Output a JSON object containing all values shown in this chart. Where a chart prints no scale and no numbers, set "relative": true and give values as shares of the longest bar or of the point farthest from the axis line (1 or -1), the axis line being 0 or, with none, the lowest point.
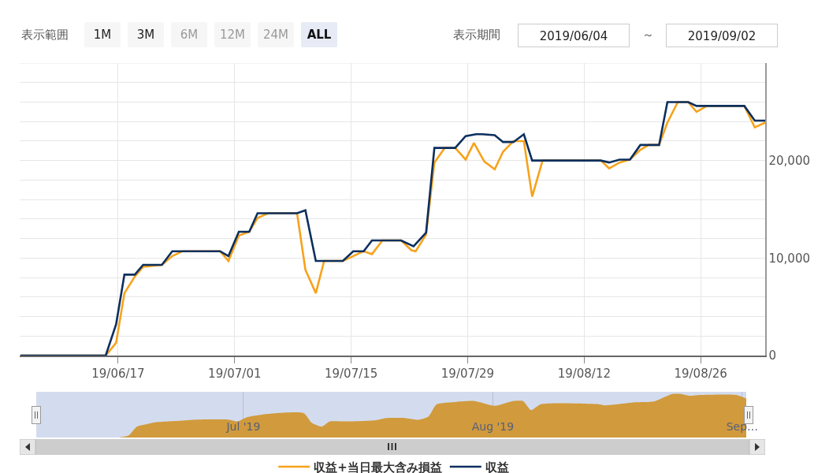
{
  "chart_data": [
    {
      "type": "line",
      "legend": "bottom",
      "grid": true,
      "annotations": [
        "表示範囲",
        "1M",
        "3M",
        "6M",
        "12M",
        "24M",
        "ALL",
        "表示期間",
        "2019/06/04",
        "～",
        "2019/09/02"
      ],
      "xlim": [
        "2019-06-05T04:00",
        "2019-09-02T18:00"
      ],
      "xticks": [
        {
          "value": "2019-06-17",
          "label": "19/06/17"
        },
        {
          "value": "2019-07-01",
          "label": "19/07/01"
        },
        {
          "value": "2019-07-15",
          "label": "19/07/15"
        },
        {
          "value": "2019-07-29",
          "label": "19/07/29"
        },
        {
          "value": "2019-08-12",
          "label": "19/08/12"
        },
        {
          "value": "2019-08-26",
          "label": "19/08/26"
        }
      ],
      "ylim": [
        0,
        30000
      ],
      "yticks": [
        0,
        {
          "value": 2000,
          "label": null
        },
        {
          "value": 4000,
          "label": null
        },
        {
          "value": 6000,
          "label": null
        },
        {
          "value": 8000,
          "label": null
        },
        {
          "value": 10000,
          "label": "10,000"
        },
        {
          "value": 12000,
          "label": null
        },
        {
          "value": 14000,
          "label": null
        },
        {
          "value": 16000,
          "label": null
        },
        {
          "value": 18000,
          "label": null
        },
        {
          "value": 20000,
          "label": "20,000"
        },
        {
          "value": 22000,
          "label": null
        },
        {
          "value": 24000,
          "label": null
        },
        {
          "value": 26000,
          "label": null
        },
        {
          "value": 28000,
          "label": null
        },
        {
          "value": 30000,
          "label": null
        }
      ],
      "series": [
        {
          "name": "収益+当日最大含み損益",
          "color": "#f7a21b",
          "x": [
            "2019-06-05T06:00",
            "2019-06-15T12:00",
            "2019-06-16T18:00",
            "2019-06-17T18:00",
            "2019-06-19",
            "2019-06-20",
            "2019-06-22T06:00",
            "2019-06-23T12:00",
            "2019-06-24T18:00",
            "2019-06-29T06:00",
            "2019-06-30T06:00",
            "2019-07-01T12:00",
            "2019-07-02T18:00",
            "2019-07-03T18:00",
            "2019-07-05",
            "2019-07-08T12:00",
            "2019-07-09T12:00",
            "2019-07-10T18:00",
            "2019-07-11T18:00",
            "2019-07-14",
            "2019-07-15T06:00",
            "2019-07-16T12:00",
            "2019-07-17T12:00",
            "2019-07-18T18:00",
            "2019-07-21",
            "2019-07-22T06:00",
            "2019-07-22T18:00",
            "2019-07-24",
            "2019-07-25",
            "2019-07-26T06:00",
            "2019-07-27T12:00",
            "2019-07-28T18:00",
            "2019-07-29T18:00",
            "2019-07-31",
            "2019-08-01T06:00",
            "2019-08-02T06:00",
            "2019-08-03T12:00",
            "2019-08-04T18:00",
            "2019-08-05T18:00",
            "2019-08-07",
            "2019-08-14",
            "2019-08-15",
            "2019-08-16T06:00",
            "2019-08-17T12:00",
            "2019-08-18T18:00",
            "2019-08-19T18:00",
            "2019-08-21",
            "2019-08-22",
            "2019-08-23T06:00",
            "2019-08-24T12:00",
            "2019-08-25T12:00",
            "2019-08-26T18:00",
            "2019-08-31T06:00",
            "2019-09-01T12:00",
            "2019-09-02T18:00"
          ],
          "values": [
            0,
            0,
            1300,
            6400,
            8100,
            9100,
            9300,
            10200,
            10700,
            10700,
            9700,
            12300,
            12700,
            14100,
            14600,
            14600,
            8800,
            6400,
            9700,
            9700,
            10200,
            10700,
            10400,
            11800,
            11800,
            10800,
            10700,
            12400,
            19800,
            21300,
            21300,
            20100,
            21800,
            19900,
            19100,
            20900,
            22000,
            22000,
            16300,
            20000,
            20000,
            19200,
            19800,
            20100,
            21100,
            21600,
            21600,
            23900,
            26000,
            26000,
            25000,
            25600,
            25600,
            23400,
            23900
          ]
        },
        {
          "name": "収益",
          "color": "#0c2f5e",
          "x": [
            "2019-06-05T06:00",
            "2019-06-15T12:00",
            "2019-06-16T18:00",
            "2019-06-17T18:00",
            "2019-06-19",
            "2019-06-20",
            "2019-06-22T06:00",
            "2019-06-23T12:00",
            "2019-06-29T06:00",
            "2019-06-30T06:00",
            "2019-07-01T12:00",
            "2019-07-02T18:00",
            "2019-07-03T18:00",
            "2019-07-08T12:00",
            "2019-07-09T12:00",
            "2019-07-10T18:00",
            "2019-07-14",
            "2019-07-15T06:00",
            "2019-07-16T12:00",
            "2019-07-17T12:00",
            "2019-07-21",
            "2019-07-22T12:00",
            "2019-07-24",
            "2019-07-25",
            "2019-07-27T12:00",
            "2019-07-28T18:00",
            "2019-07-30",
            "2019-07-30T18:00",
            "2019-08-01T06:00",
            "2019-08-02T06:00",
            "2019-08-03T12:00",
            "2019-08-04T18:00",
            "2019-08-05T18:00",
            "2019-08-14",
            "2019-08-15",
            "2019-08-16T06:00",
            "2019-08-17T12:00",
            "2019-08-18T18:00",
            "2019-08-21",
            "2019-08-22",
            "2019-08-24T12:00",
            "2019-08-25T12:00",
            "2019-08-31T06:00",
            "2019-09-01T12:00",
            "2019-09-02T18:00"
          ],
          "values": [
            0,
            0,
            3200,
            8300,
            8300,
            9300,
            9300,
            10700,
            10700,
            10200,
            12700,
            12700,
            14600,
            14600,
            14900,
            9700,
            9700,
            10700,
            10700,
            11800,
            11800,
            11200,
            12600,
            21300,
            21300,
            22500,
            22700,
            22700,
            22600,
            21900,
            21900,
            22700,
            20000,
            20000,
            19800,
            20100,
            20100,
            21600,
            21600,
            26000,
            26000,
            25600,
            25600,
            24100,
            24100
          ]
        }
      ]
    },
    {
      "type": "area",
      "relative": true,
      "grid": "x",
      "tick_labels": "x",
      "xlim": [
        "2019-06-05T06:00",
        "2019-09-01T12:00"
      ],
      "xticks": [
        {
          "value": "2019-07-01",
          "label": "Jul '19"
        },
        {
          "value": "2019-08-01",
          "label": "Aug '19"
        },
        {
          "value": "2019-09-01",
          "label": "Sep…"
        }
      ],
      "x": [
        "2019-06-05T06:00",
        "2019-06-15T12:00",
        "2019-06-16T18:00",
        "2019-06-17T18:00",
        "2019-06-19",
        "2019-06-20",
        "2019-06-23T12:00",
        "2019-06-24T18:00",
        "2019-06-29T06:00",
        "2019-06-30T06:00",
        "2019-07-01T12:00",
        "2019-07-03T18:00",
        "2019-07-05",
        "2019-07-08T12:00",
        "2019-07-09T12:00",
        "2019-07-10T18:00",
        "2019-07-11T18:00",
        "2019-07-14",
        "2019-07-17T12:00",
        "2019-07-18T18:00",
        "2019-07-21",
        "2019-07-22T18:00",
        "2019-07-24",
        "2019-07-25",
        "2019-07-27T12:00",
        "2019-07-29T18:00",
        "2019-08-01T06:00",
        "2019-08-03T12:00",
        "2019-08-04T18:00",
        "2019-08-05T18:00",
        "2019-08-07",
        "2019-08-14",
        "2019-08-15",
        "2019-08-18T18:00",
        "2019-08-21",
        "2019-08-23T06:00",
        "2019-08-24T12:00",
        "2019-08-25T12:00",
        "2019-08-26T18:00",
        "2019-08-31T06:00",
        "2019-09-01T12:00"
      ],
      "series": [
        {
          "color": "#d19a3c",
          "values": [
            0,
            0,
            0.05,
            0.25,
            0.31,
            0.35,
            0.39,
            0.41,
            0.41,
            0.37,
            0.47,
            0.54,
            0.56,
            0.56,
            0.34,
            0.25,
            0.37,
            0.37,
            0.4,
            0.45,
            0.45,
            0.41,
            0.48,
            0.76,
            0.82,
            0.84,
            0.73,
            0.84,
            0.84,
            0.63,
            0.77,
            0.77,
            0.74,
            0.81,
            0.83,
            1,
            1,
            0.96,
            0.98,
            0.98,
            0.9
          ]
        }
      ]
    }
  ]
}
